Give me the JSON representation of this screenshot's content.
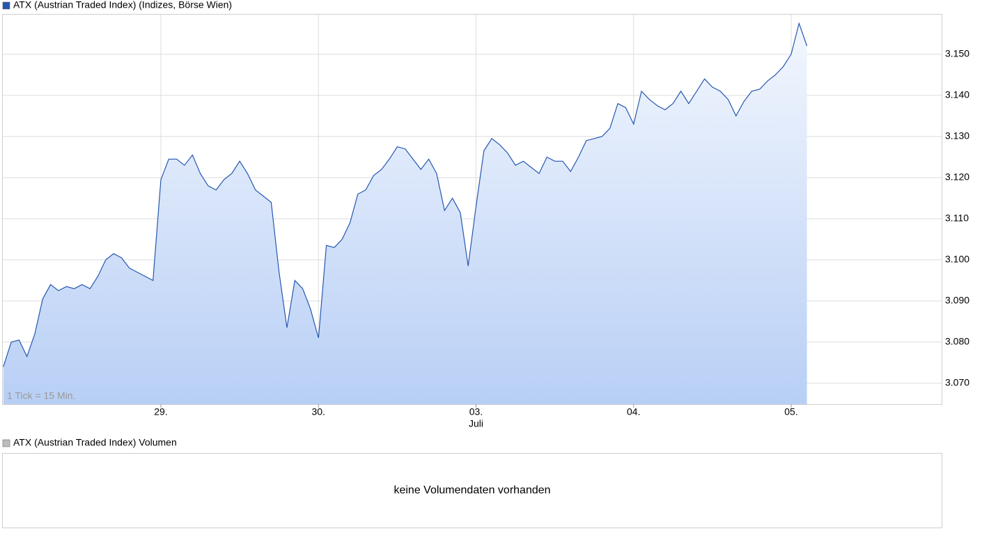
{
  "chart_data": [
    {
      "type": "area",
      "series": [
        {
          "name": "ATX (Austrian Traded Index) (Indizes, Börse Wien)",
          "color": "#2557b0",
          "values": [
            3074,
            3080,
            3080.5,
            3076.5,
            3082,
            3090.5,
            3094,
            3092.5,
            3093.5,
            3093,
            3094,
            3093,
            3096,
            3100,
            3101.5,
            3100.5,
            3098,
            3097,
            3096,
            3095,
            3119.5,
            3124.5,
            3124.5,
            3123,
            3125.5,
            3121,
            3118,
            3117,
            3119.5,
            3121,
            3124,
            3121,
            3117,
            3115.5,
            3114,
            3097,
            3083.5,
            3095,
            3093,
            3088,
            3081,
            3103.5,
            3103,
            3105,
            3109,
            3116,
            3117,
            3120.5,
            3122,
            3124.5,
            3127.5,
            3127,
            3124.5,
            3122,
            3124.5,
            3121,
            3112,
            3115,
            3111.5,
            3098.5,
            3113,
            3126.5,
            3129.5,
            3128,
            3126,
            3123,
            3124,
            3122.5,
            3121,
            3125,
            3124,
            3124,
            3121.5,
            3125,
            3129,
            3129.5,
            3130,
            3132,
            3138,
            3137,
            3133,
            3141,
            3139,
            3137.5,
            3136.5,
            3138,
            3141,
            3138,
            3141,
            3144,
            3142,
            3141,
            3139,
            3135,
            3138.5,
            3141,
            3141.5,
            3143.5,
            3145,
            3147,
            3150,
            3157.5,
            3152
          ]
        }
      ],
      "categories": [
        null,
        null,
        null,
        null,
        null,
        null,
        null,
        null,
        null,
        null,
        null,
        null,
        null,
        null,
        null,
        null,
        null,
        null,
        null,
        null,
        "29.",
        null,
        null,
        null,
        null,
        null,
        null,
        null,
        null,
        null,
        null,
        null,
        null,
        null,
        null,
        null,
        null,
        null,
        null,
        null,
        "30.",
        null,
        null,
        null,
        null,
        null,
        null,
        null,
        null,
        null,
        null,
        null,
        null,
        null,
        null,
        null,
        null,
        null,
        null,
        null,
        "03.",
        null,
        null,
        null,
        null,
        null,
        null,
        null,
        null,
        null,
        null,
        null,
        null,
        null,
        null,
        null,
        null,
        null,
        null,
        null,
        "04.",
        null,
        null,
        null,
        null,
        null,
        null,
        null,
        null,
        null,
        null,
        null,
        null,
        null,
        null,
        null,
        null,
        null,
        null,
        null,
        "05.",
        null,
        null
      ],
      "annotations": [
        {
          "text": "Juli",
          "category": "03."
        }
      ],
      "note": "1 Tick = 15 Min.",
      "ylim": [
        3064.9,
        3159.8
      ],
      "yticks": [
        {
          "value": 3070,
          "label": "3.070"
        },
        {
          "value": 3080,
          "label": "3.080"
        },
        {
          "value": 3090,
          "label": "3.090"
        },
        {
          "value": 3100,
          "label": "3.100"
        },
        {
          "value": 3110,
          "label": "3.110"
        },
        {
          "value": 3120,
          "label": "3.120"
        },
        {
          "value": 3130,
          "label": "3.130"
        },
        {
          "value": 3140,
          "label": "3.140"
        },
        {
          "value": 3150,
          "label": "3.150"
        }
      ],
      "grid": true
    },
    {
      "type": "empty",
      "title": "ATX (Austrian Traded Index) Volumen",
      "color": "#bdbdbd",
      "message": "keine Volumendaten vorhanden"
    }
  ]
}
